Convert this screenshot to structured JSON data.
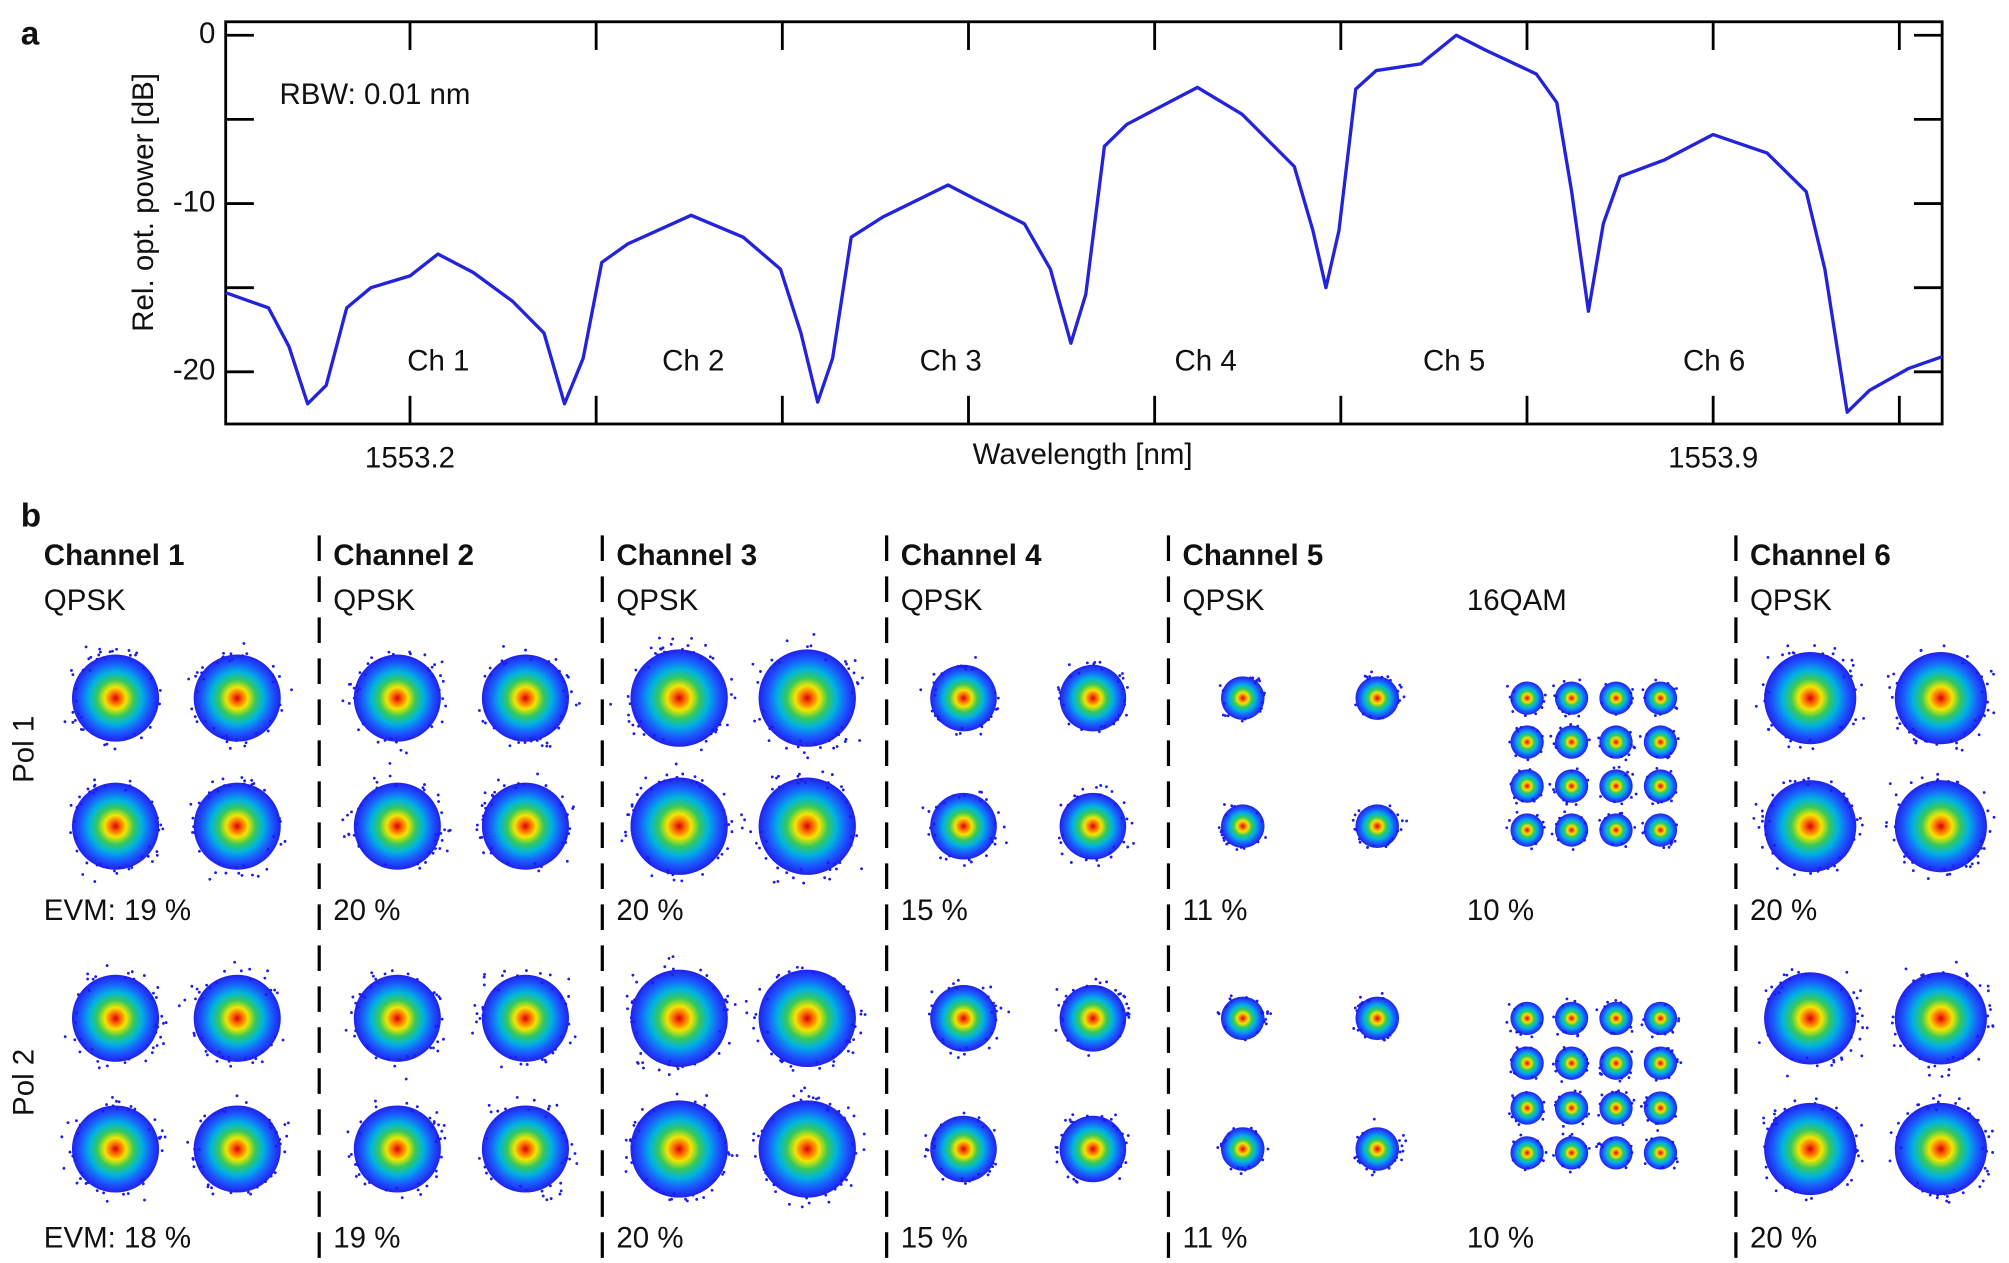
{
  "chart_data": {
    "type": "line",
    "panel_label": "a",
    "xlabel": "Wavelength [nm]",
    "ylabel": "Rel. opt. power [dB]",
    "annotations": [
      "RBW: 0.01 nm"
    ],
    "channel_labels": [
      "Ch 1",
      "Ch 2",
      "Ch 3",
      "Ch 4",
      "Ch 5",
      "Ch 6"
    ],
    "xlim": [
      1553.101,
      1554.023
    ],
    "ylim": [
      -23.1,
      0.8
    ],
    "xticks": [
      1553.2,
      1553.9
    ],
    "xminor_ticks": [
      1553.3,
      1553.4,
      1553.5,
      1553.6,
      1553.7,
      1553.8,
      1554.0
    ],
    "yticks": [
      -20,
      -10,
      0
    ],
    "yminor_ticks": [
      -15,
      -5
    ],
    "color": "#2323dc",
    "x": [
      1553.101,
      1553.124,
      1553.135,
      1553.145,
      1553.155,
      1553.166,
      1553.179,
      1553.2,
      1553.215,
      1553.234,
      1553.255,
      1553.272,
      1553.283,
      1553.293,
      1553.303,
      1553.317,
      1553.351,
      1553.379,
      1553.399,
      1553.41,
      1553.419,
      1553.427,
      1553.437,
      1553.454,
      1553.489,
      1553.503,
      1553.53,
      1553.544,
      1553.555,
      1553.563,
      1553.573,
      1553.585,
      1553.623,
      1553.647,
      1553.675,
      1553.685,
      1553.692,
      1553.699,
      1553.708,
      1553.719,
      1553.743,
      1553.762,
      1553.778,
      1553.805,
      1553.816,
      1553.824,
      1553.833,
      1553.841,
      1553.85,
      1553.874,
      1553.9,
      1553.929,
      1553.95,
      1553.96,
      1553.972,
      1553.984,
      1554.005,
      1554.023
    ],
    "values": [
      -15.3,
      -16.2,
      -18.5,
      -21.9,
      -20.8,
      -16.2,
      -15.0,
      -14.3,
      -13.0,
      -14.1,
      -15.8,
      -17.7,
      -21.9,
      -19.2,
      -13.5,
      -12.4,
      -10.7,
      -12.0,
      -13.9,
      -17.7,
      -21.8,
      -19.2,
      -12.0,
      -10.8,
      -8.9,
      -9.7,
      -11.2,
      -13.9,
      -18.3,
      -15.4,
      -6.6,
      -5.3,
      -3.1,
      -4.7,
      -7.8,
      -11.6,
      -15.0,
      -11.6,
      -3.2,
      -2.1,
      -1.7,
      0.0,
      -0.9,
      -2.3,
      -4.0,
      -9.3,
      -16.4,
      -11.2,
      -8.4,
      -7.4,
      -5.9,
      -7.0,
      -9.3,
      -13.9,
      -22.4,
      -21.1,
      -19.8,
      -19.1
    ]
  },
  "panel_b": {
    "label": "b",
    "rows": [
      "Pol 1",
      "Pol 2"
    ],
    "channels": [
      {
        "name": "Channel 1",
        "formats": [
          {
            "name": "QPSK",
            "evm": [
              "EVM: 19 %",
              "EVM: 18 %"
            ]
          }
        ]
      },
      {
        "name": "Channel 2",
        "formats": [
          {
            "name": "QPSK",
            "evm": [
              "20 %",
              "19 %"
            ]
          }
        ]
      },
      {
        "name": "Channel 3",
        "formats": [
          {
            "name": "QPSK",
            "evm": [
              "20 %",
              "20 %"
            ]
          }
        ]
      },
      {
        "name": "Channel 4",
        "formats": [
          {
            "name": "QPSK",
            "evm": [
              "15 %",
              "15 %"
            ]
          }
        ]
      },
      {
        "name": "Channel 5",
        "formats": [
          {
            "name": "QPSK",
            "evm": [
              "11 %",
              "11 %"
            ]
          },
          {
            "name": "16QAM",
            "evm": [
              "10 %",
              "10 %"
            ]
          }
        ]
      },
      {
        "name": "Channel 6",
        "formats": [
          {
            "name": "QPSK",
            "evm": [
              "20 %",
              "20 %"
            ]
          }
        ]
      }
    ]
  }
}
